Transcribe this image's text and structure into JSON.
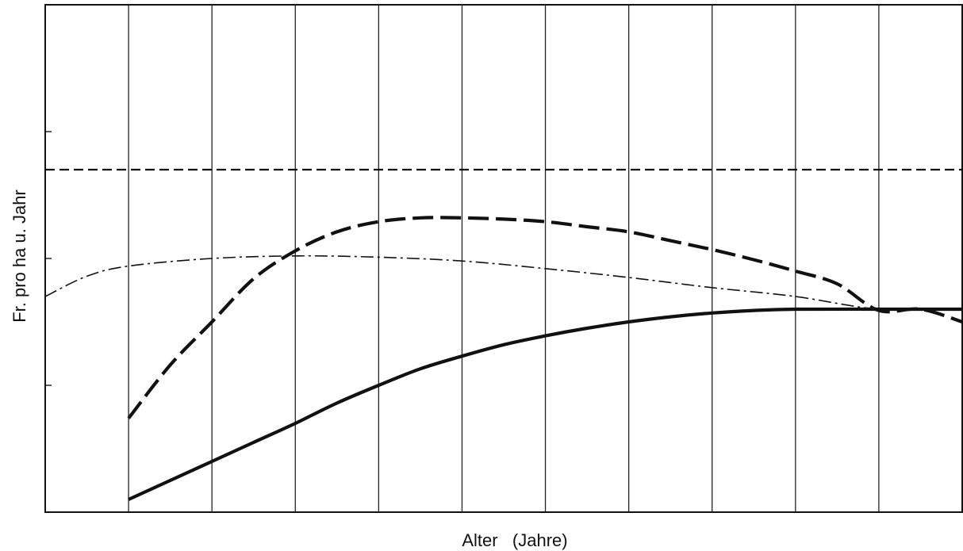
{
  "chart_data": {
    "type": "line",
    "xlabel": "Alter   (Jahre)",
    "ylabel": "Fr. pro ha u. Jahr",
    "grid": true,
    "xlim": [
      0,
      11
    ],
    "ylim": [
      0,
      4
    ],
    "x_ticks_unlabeled": [
      1,
      2,
      3,
      4,
      5,
      6,
      7,
      8,
      9,
      10
    ],
    "y_ticks_unlabeled": [
      1,
      2,
      3
    ],
    "series": [
      {
        "style": "dashed",
        "points": [
          [
            0,
            2.7
          ],
          [
            11,
            2.7
          ]
        ]
      },
      {
        "style": "long-dash",
        "points": [
          [
            1,
            0.74
          ],
          [
            1.5,
            1.16
          ],
          [
            2,
            1.5
          ],
          [
            2.5,
            1.84
          ],
          [
            3,
            2.06
          ],
          [
            3.5,
            2.21
          ],
          [
            4,
            2.29
          ],
          [
            4.5,
            2.32
          ],
          [
            5,
            2.32
          ],
          [
            5.5,
            2.31
          ],
          [
            6,
            2.29
          ],
          [
            6.5,
            2.25
          ],
          [
            7,
            2.21
          ],
          [
            7.5,
            2.14
          ],
          [
            8,
            2.07
          ],
          [
            8.5,
            1.99
          ],
          [
            9,
            1.9
          ],
          [
            9.5,
            1.8
          ],
          [
            10,
            1.59
          ],
          [
            10.5,
            1.6
          ],
          [
            11,
            1.5
          ]
        ]
      },
      {
        "style": "dash-dot",
        "points": [
          [
            0,
            1.7
          ],
          [
            0.5,
            1.86
          ],
          [
            1,
            1.94
          ],
          [
            2,
            2.0
          ],
          [
            3,
            2.02
          ],
          [
            4,
            2.01
          ],
          [
            5,
            1.98
          ],
          [
            6,
            1.92
          ],
          [
            7,
            1.85
          ],
          [
            8,
            1.77
          ],
          [
            9,
            1.7
          ],
          [
            10,
            1.6
          ],
          [
            11,
            1.6
          ]
        ]
      },
      {
        "style": "solid",
        "points": [
          [
            1,
            0.1
          ],
          [
            1.5,
            0.25
          ],
          [
            2,
            0.4
          ],
          [
            2.5,
            0.55
          ],
          [
            3,
            0.7
          ],
          [
            3.5,
            0.86
          ],
          [
            4,
            1.0
          ],
          [
            4.5,
            1.13
          ],
          [
            5,
            1.23
          ],
          [
            5.5,
            1.32
          ],
          [
            6,
            1.39
          ],
          [
            6.5,
            1.45
          ],
          [
            7,
            1.5
          ],
          [
            7.5,
            1.54
          ],
          [
            8,
            1.57
          ],
          [
            8.5,
            1.59
          ],
          [
            9,
            1.6
          ],
          [
            10,
            1.6
          ],
          [
            11,
            1.6
          ]
        ]
      }
    ]
  }
}
